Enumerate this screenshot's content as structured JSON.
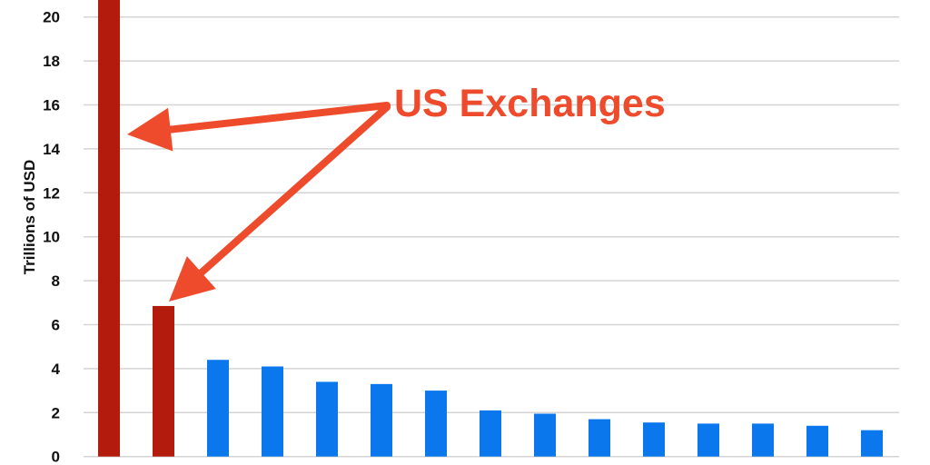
{
  "chart_data": {
    "type": "bar",
    "title": "",
    "xlabel": "",
    "ylabel": "Trillions of USD",
    "ylim": [
      0,
      20.8
    ],
    "yticks": [
      0,
      2,
      4,
      6,
      8,
      10,
      12,
      14,
      16,
      18,
      20
    ],
    "grid": true,
    "categories": [
      "",
      "",
      "",
      "",
      "",
      "",
      "",
      "",
      "",
      "",
      "",
      "",
      "",
      "",
      ""
    ],
    "values": [
      21,
      6.85,
      4.4,
      4.1,
      3.4,
      3.3,
      3.0,
      2.1,
      1.95,
      1.7,
      1.55,
      1.5,
      1.5,
      1.4,
      1.2
    ],
    "highlight_indices": [
      0,
      1
    ],
    "colors": {
      "highlight": "#b31b0c",
      "default": "#0a78ec",
      "annotation": "#ee4a2c",
      "grid": "#d4d4d4"
    },
    "annotation": {
      "text": "US Exchanges",
      "points_to_indices": [
        0,
        1
      ]
    }
  }
}
